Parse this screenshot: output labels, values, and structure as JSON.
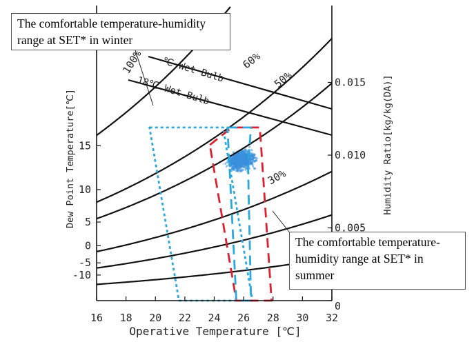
{
  "chart_data": {
    "type": "psychrometric",
    "xlabel": "Operative Temperature [℃]",
    "ylabel_left": "Dew Point Temperature[℃]",
    "ylabel_right": "Humidity Ratio[kg/kg(DA)]",
    "xlim": [
      16,
      32
    ],
    "x_ticks": [
      "16",
      "18",
      "20",
      "22",
      "24",
      "26",
      "28",
      "30",
      "32"
    ],
    "left_ticks": [
      "15",
      "10",
      "5",
      "0",
      "-5",
      "-10"
    ],
    "left_tick_values": [
      15,
      10,
      5,
      0,
      -5,
      -10
    ],
    "right_ticks": [
      "0.015",
      "0.010",
      "0.005",
      "0"
    ],
    "right_tick_values": [
      0.015,
      0.01,
      0.005,
      0
    ],
    "rh_curves": [
      {
        "label": "100%",
        "rh": 1.0
      },
      {
        "label": "60%",
        "rh": 0.6
      },
      {
        "label": "50%",
        "rh": 0.5
      },
      {
        "label": "30%",
        "rh": 0.3
      },
      {
        "rh": 0.2
      },
      {
        "rh": 0.1
      }
    ],
    "wet_bulb_lines": [
      {
        "label": "18℃ Wet Bulb",
        "wet_bulb": 18
      },
      {
        "label": "℃ Wet Bulb",
        "wet_bulb": 20
      }
    ],
    "comfort_zones": [
      {
        "name": "winter",
        "style": "dotted",
        "color": "#29a8df",
        "polygon": [
          [
            19.6,
            0.0119
          ],
          [
            24.6,
            0.0119
          ],
          [
            26.6,
            0
          ],
          [
            21.6,
            0
          ]
        ]
      },
      {
        "name": "summer",
        "style": "dashed",
        "color": "#dd1f2f",
        "polygon": [
          [
            23.7,
            0.0107
          ],
          [
            25.2,
            0.0119
          ],
          [
            27.1,
            0.0119
          ],
          [
            27.9,
            0
          ],
          [
            25.5,
            0
          ]
        ]
      },
      {
        "name": "summer-inner",
        "style": "dashed",
        "color": "#29a8df",
        "polygon": [
          [
            24.9,
            0.0119
          ],
          [
            26.5,
            0.0119
          ],
          [
            26.3,
            0.0093
          ],
          [
            26.5,
            0
          ],
          [
            25.5,
            0
          ]
        ]
      }
    ],
    "scatter_cluster": {
      "color": "#3b8fdc",
      "x_range": [
        24.0,
        27.6
      ],
      "y_range": [
        0.0084,
        0.0109
      ],
      "n": 900
    }
  },
  "annotations": {
    "winter": "The comfortable temperature-humidity range at SET* in winter",
    "summer": "The comfortable temperature-humidity range at SET* in summer"
  },
  "colors": {
    "winter_zone": "#29a8df",
    "summer_zone": "#dd1f2f",
    "scatter": "#3b8fdc",
    "lines": "#111111"
  }
}
